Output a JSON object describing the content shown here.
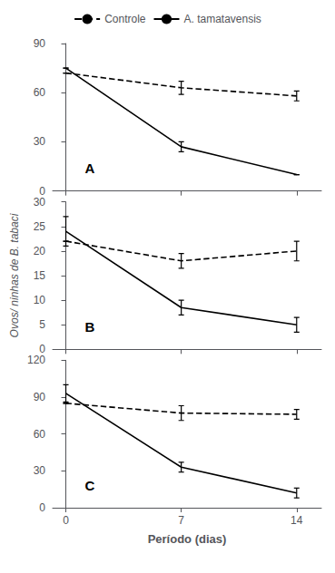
{
  "chart_data": [
    {
      "type": "line",
      "annotations": [
        "A"
      ],
      "x": [
        0,
        7,
        14
      ],
      "xlim": [
        -0.8,
        15.5
      ],
      "xticks": [
        0,
        7,
        14
      ],
      "ylim": [
        0,
        90
      ],
      "yticks": [
        0,
        30,
        60,
        90
      ],
      "grid": false,
      "legend": "top",
      "tick_labels": "y",
      "series": [
        {
          "name": "Controle",
          "color": "#000000",
          "line_style": "dashed",
          "values": [
            72,
            63,
            58
          ],
          "errors": [
            0,
            4,
            3
          ]
        },
        {
          "name": "A. tamatavensis",
          "color": "#000000",
          "line_style": "solid",
          "values": [
            75,
            27,
            10
          ],
          "errors": [
            0,
            3,
            0
          ]
        }
      ]
    },
    {
      "type": "line",
      "annotations": [
        "B"
      ],
      "x": [
        0,
        7,
        14
      ],
      "xlim": [
        -0.8,
        15.5
      ],
      "xticks": [
        0,
        7,
        14
      ],
      "ylabel": "Ovos/ ninhas de B. tabaci",
      "ylim": [
        0,
        30
      ],
      "yticks": [
        0,
        5,
        10,
        15,
        20,
        25,
        30
      ],
      "grid": false,
      "tick_labels": "y",
      "series": [
        {
          "name": "Controle",
          "color": "#000000",
          "line_style": "dashed",
          "values": [
            22,
            18,
            20
          ],
          "errors": [
            0,
            1.5,
            2
          ]
        },
        {
          "name": "A. tamatavensis",
          "color": "#000000",
          "line_style": "solid",
          "values": [
            24,
            8.5,
            5
          ],
          "errors": [
            3,
            1.5,
            1.5
          ]
        }
      ]
    },
    {
      "type": "line",
      "annotations": [
        "C"
      ],
      "x": [
        0,
        7,
        14
      ],
      "xlabel": "Período (dias)",
      "xlim": [
        -0.8,
        15.5
      ],
      "xticks": [
        0,
        7,
        14
      ],
      "ylim": [
        0,
        120
      ],
      "yticks": [
        0,
        30,
        60,
        90,
        120
      ],
      "grid": false,
      "series": [
        {
          "name": "Controle",
          "color": "#000000",
          "line_style": "dashed",
          "values": [
            85,
            77,
            76
          ],
          "errors": [
            0,
            6,
            4
          ]
        },
        {
          "name": "A. tamatavensis",
          "color": "#000000",
          "line_style": "solid",
          "values": [
            93,
            33,
            12
          ],
          "errors": [
            7,
            4,
            4
          ]
        }
      ]
    }
  ]
}
